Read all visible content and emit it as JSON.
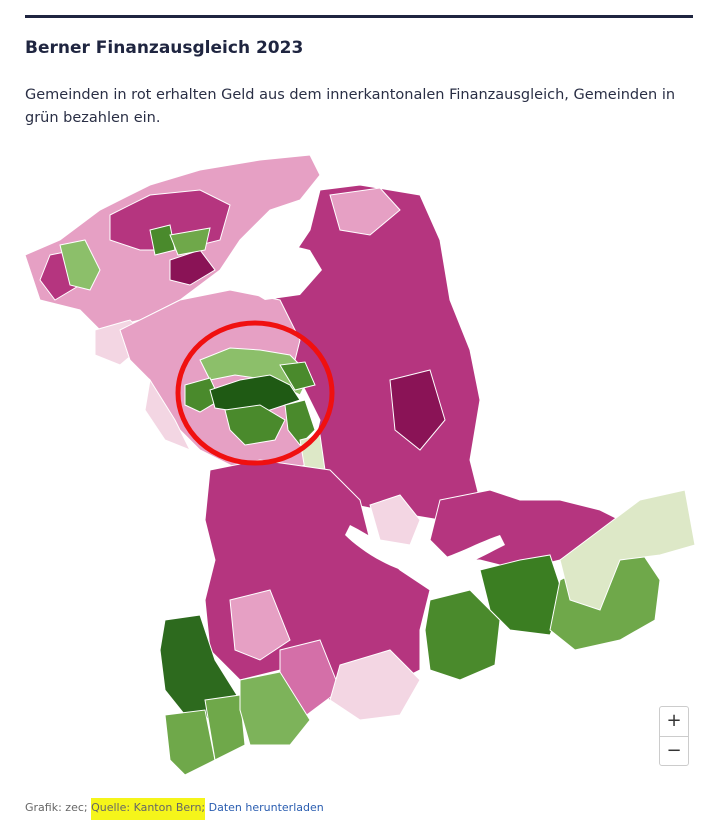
{
  "header": {
    "title": "Berner Finanzausgleich 2023",
    "subtitle": "Gemeinden in rot erhalten Geld aus dem innerkantonalen Finanzausgleich, Gemeinden in grün bezahlen ein."
  },
  "controls": {
    "zoom_in": "+",
    "zoom_out": "−"
  },
  "footer": {
    "credit": "Grafik: zec;",
    "source": "Quelle: Kanton Bern;",
    "download": "Daten herunterladen"
  }
}
